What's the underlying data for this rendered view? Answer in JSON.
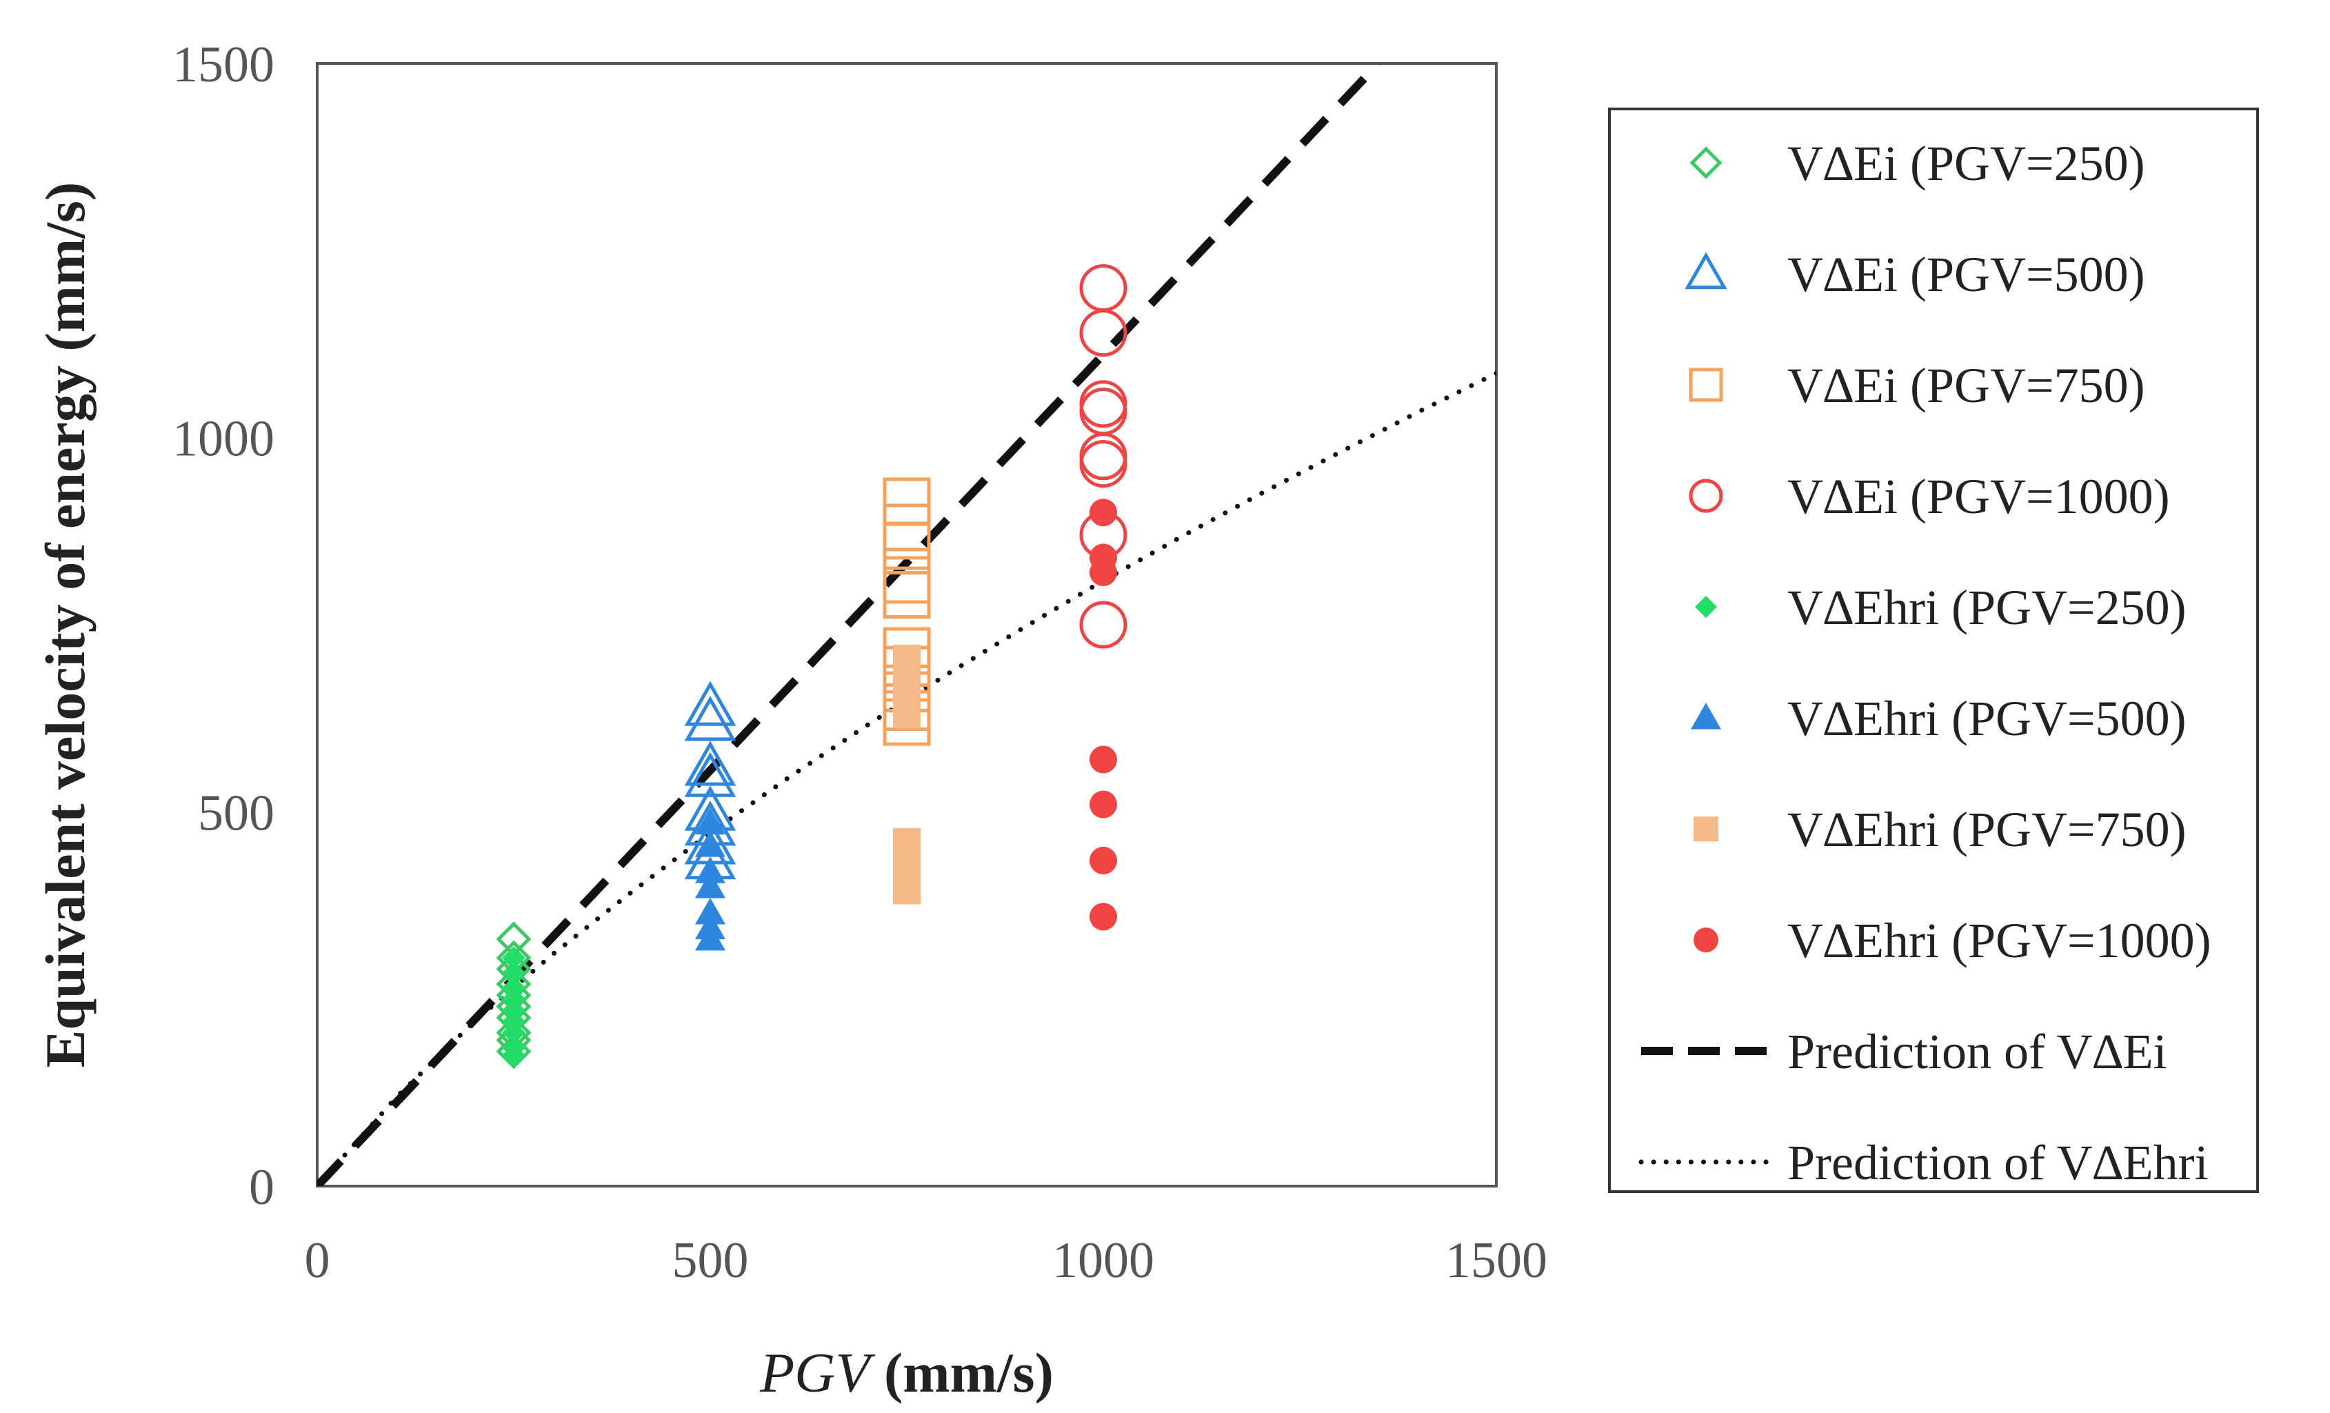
{
  "chart_data": {
    "type": "scatter",
    "title": "",
    "xlabel_prefix": "PGV",
    "xlabel_suffix": " (mm/s)",
    "ylabel": "Equivalent velocity of energy (mm/s)",
    "xlim": [
      0,
      1500
    ],
    "ylim": [
      0,
      1500
    ],
    "x_ticks": [
      {
        "value": 0,
        "label": "0"
      },
      {
        "value": 500,
        "label": "500"
      },
      {
        "value": 1000,
        "label": "1000"
      },
      {
        "value": 1500,
        "label": "1500"
      }
    ],
    "y_ticks": [
      {
        "value": 0,
        "label": "0"
      },
      {
        "value": 500,
        "label": "500"
      },
      {
        "value": 1000,
        "label": "1000"
      },
      {
        "value": 1500,
        "label": "1500"
      }
    ],
    "grid": false,
    "legend_position": "right",
    "series": [
      {
        "name": "V∆Ei (PGV=250)",
        "marker": "diamond",
        "filled": false,
        "color": "#3CC864",
        "points": [
          [
            250,
            330
          ],
          [
            250,
            305
          ],
          [
            250,
            290
          ],
          [
            250,
            270
          ],
          [
            250,
            255
          ],
          [
            250,
            240
          ],
          [
            250,
            225
          ],
          [
            250,
            205
          ],
          [
            250,
            195
          ],
          [
            250,
            180
          ]
        ]
      },
      {
        "name": "V∆Ei (PGV=500)",
        "marker": "triangle",
        "filled": false,
        "color": "#2E86DE",
        "points": [
          [
            500,
            640
          ],
          [
            500,
            620
          ],
          [
            500,
            560
          ],
          [
            500,
            545
          ],
          [
            500,
            500
          ],
          [
            500,
            480
          ],
          [
            500,
            455
          ],
          [
            500,
            435
          ]
        ]
      },
      {
        "name": "V∆Ei (PGV=750)",
        "marker": "square",
        "filled": false,
        "color": "#F5A35C",
        "points": [
          [
            750,
            915
          ],
          [
            750,
            880
          ],
          [
            750,
            855
          ],
          [
            750,
            810
          ],
          [
            750,
            790
          ],
          [
            750,
            715
          ],
          [
            750,
            690
          ],
          [
            750,
            665
          ],
          [
            750,
            640
          ],
          [
            750,
            620
          ]
        ]
      },
      {
        "name": "V∆Ei (PGV=1000)",
        "marker": "circle",
        "filled": false,
        "color": "#EE4444",
        "points": [
          [
            1000,
            1200
          ],
          [
            1000,
            1140
          ],
          [
            1000,
            1045
          ],
          [
            1000,
            1035
          ],
          [
            1000,
            975
          ],
          [
            1000,
            965
          ],
          [
            1000,
            870
          ],
          [
            1000,
            750
          ]
        ]
      },
      {
        "name": "V∆Ehri (PGV=250)",
        "marker": "diamond",
        "filled": true,
        "color": "#22DD66",
        "points": [
          [
            250,
            305
          ],
          [
            250,
            285
          ],
          [
            250,
            265
          ],
          [
            250,
            250
          ],
          [
            250,
            235
          ],
          [
            250,
            220
          ],
          [
            250,
            205
          ],
          [
            250,
            185
          ],
          [
            250,
            175
          ]
        ]
      },
      {
        "name": "V∆Ehri (PGV=500)",
        "marker": "triangle",
        "filled": true,
        "color": "#2E86DE",
        "points": [
          [
            500,
            485
          ],
          [
            500,
            455
          ],
          [
            500,
            420
          ],
          [
            500,
            400
          ],
          [
            500,
            365
          ],
          [
            500,
            345
          ],
          [
            500,
            330
          ]
        ]
      },
      {
        "name": "V∆Ehri (PGV=750)",
        "marker": "square",
        "filled": true,
        "color": "#F5B98A",
        "points": [
          [
            750,
            705
          ],
          [
            750,
            680
          ],
          [
            750,
            655
          ],
          [
            750,
            630
          ],
          [
            750,
            460
          ],
          [
            750,
            440
          ],
          [
            750,
            420
          ],
          [
            750,
            395
          ]
        ]
      },
      {
        "name": "V∆Ehri (PGV=1000)",
        "marker": "circle",
        "filled": true,
        "color": "#EE4444",
        "points": [
          [
            1000,
            900
          ],
          [
            1000,
            840
          ],
          [
            1000,
            820
          ],
          [
            1000,
            570
          ],
          [
            1000,
            510
          ],
          [
            1000,
            435
          ],
          [
            1000,
            360
          ]
        ]
      }
    ],
    "lines": [
      {
        "name": "Prediction of V∆Ei",
        "style": "dashed",
        "color": "#111111",
        "points": [
          [
            0,
            0
          ],
          [
            1350,
            1500
          ]
        ]
      },
      {
        "name": "Prediction of V∆Ehri",
        "style": "dotted",
        "color": "#111111",
        "points": [
          [
            0,
            0
          ],
          [
            100,
            118
          ],
          [
            200,
            220
          ],
          [
            300,
            310
          ],
          [
            400,
            393
          ],
          [
            500,
            472
          ],
          [
            600,
            546
          ],
          [
            700,
            616
          ],
          [
            800,
            683
          ],
          [
            900,
            747
          ],
          [
            1000,
            809
          ],
          [
            1100,
            868
          ],
          [
            1200,
            925
          ],
          [
            1300,
            980
          ],
          [
            1400,
            1034
          ],
          [
            1500,
            1086
          ]
        ]
      }
    ]
  }
}
